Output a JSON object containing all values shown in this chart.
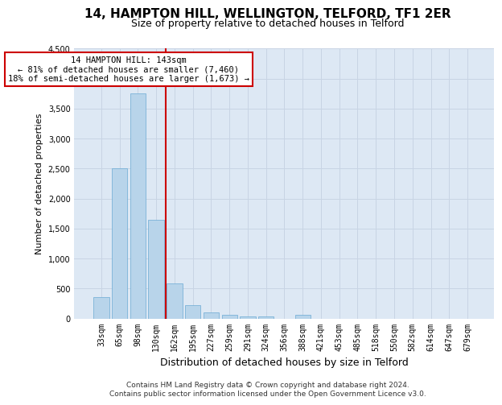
{
  "title1": "14, HAMPTON HILL, WELLINGTON, TELFORD, TF1 2ER",
  "title2": "Size of property relative to detached houses in Telford",
  "xlabel": "Distribution of detached houses by size in Telford",
  "ylabel": "Number of detached properties",
  "bar_color": "#b8d4ea",
  "bar_edge_color": "#6aaad4",
  "categories": [
    "33sqm",
    "65sqm",
    "98sqm",
    "130sqm",
    "162sqm",
    "195sqm",
    "227sqm",
    "259sqm",
    "291sqm",
    "324sqm",
    "356sqm",
    "388sqm",
    "421sqm",
    "453sqm",
    "485sqm",
    "518sqm",
    "550sqm",
    "582sqm",
    "614sqm",
    "647sqm",
    "679sqm"
  ],
  "values": [
    360,
    2500,
    3750,
    1650,
    590,
    220,
    100,
    60,
    40,
    40,
    0,
    60,
    0,
    0,
    0,
    0,
    0,
    0,
    0,
    0,
    0
  ],
  "ylim": [
    0,
    4500
  ],
  "yticks": [
    0,
    500,
    1000,
    1500,
    2000,
    2500,
    3000,
    3500,
    4000,
    4500
  ],
  "red_line_x": 3.5,
  "annotation_title": "14 HAMPTON HILL: 143sqm",
  "annotation_line1": "← 81% of detached houses are smaller (7,460)",
  "annotation_line2": "18% of semi-detached houses are larger (1,673) →",
  "annotation_box_color": "#ffffff",
  "annotation_box_edge": "#cc0000",
  "red_line_color": "#cc0000",
  "grid_color": "#c8d4e4",
  "background_color": "#dde8f4",
  "footnote": "Contains HM Land Registry data © Crown copyright and database right 2024.\nContains public sector information licensed under the Open Government Licence v3.0.",
  "title1_fontsize": 11,
  "title2_fontsize": 9,
  "xlabel_fontsize": 9,
  "ylabel_fontsize": 8,
  "tick_fontsize": 7,
  "footnote_fontsize": 6.5,
  "ann_fontsize": 7.5
}
